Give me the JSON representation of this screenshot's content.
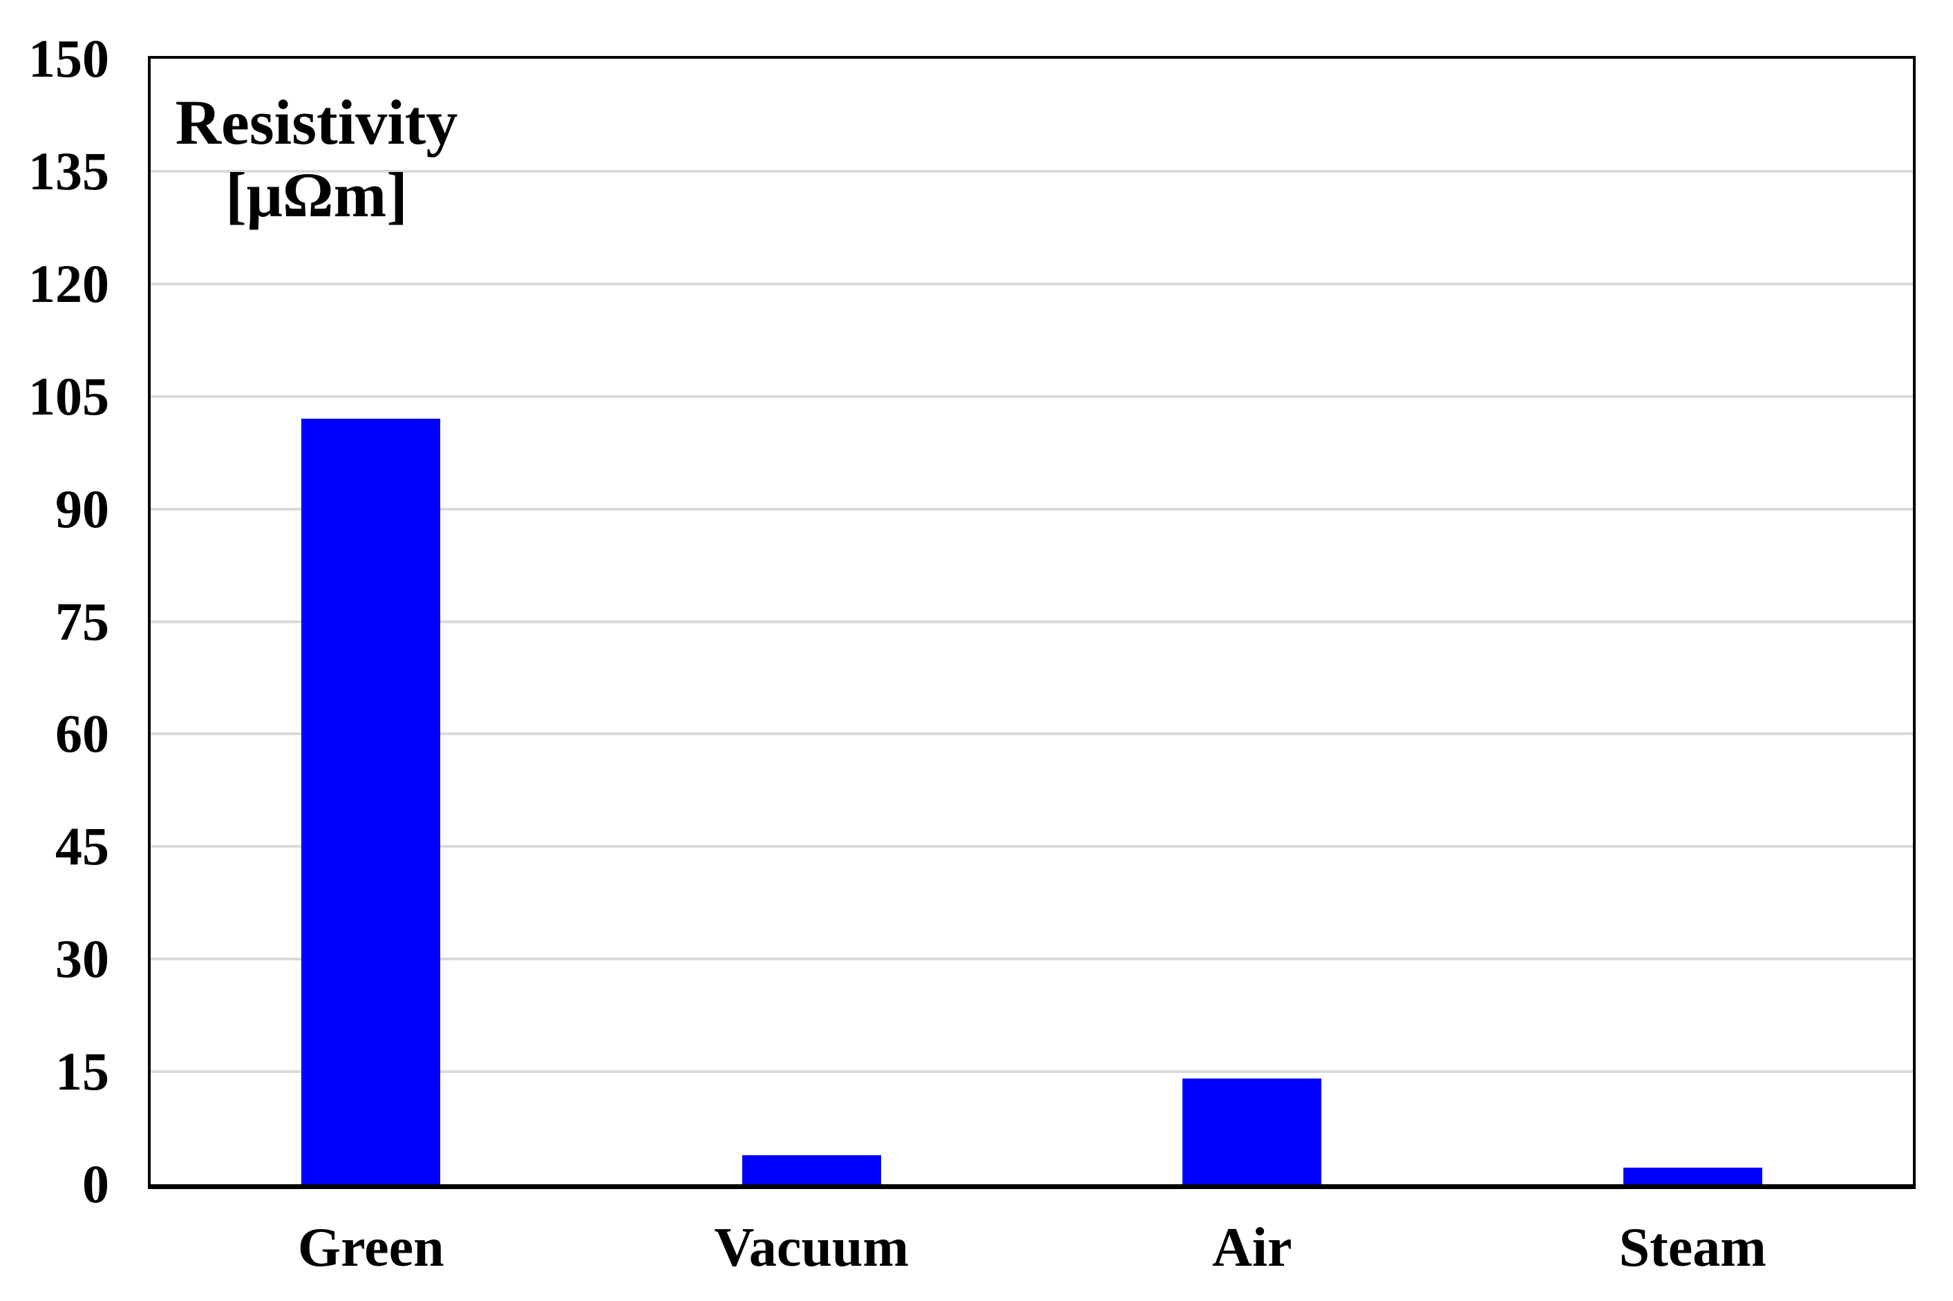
{
  "chart_data": {
    "type": "bar",
    "title_lines": [
      "Resistivity",
      "[μΩm]"
    ],
    "ylabel": "Resistivity [μΩm]",
    "categories": [
      "Green",
      "Vacuum",
      "Air",
      "Steam"
    ],
    "values": [
      102,
      3.9,
      14.1,
      2.2
    ],
    "ylim": [
      0,
      150
    ],
    "yticks": [
      0,
      15,
      30,
      45,
      60,
      75,
      90,
      105,
      120,
      135,
      150
    ],
    "grid": "horizontal",
    "legend": "none",
    "bar_color": "#0000ff",
    "grid_color": "#d9d9d9",
    "axis_color": "#000000",
    "background_color": "#ffffff"
  }
}
